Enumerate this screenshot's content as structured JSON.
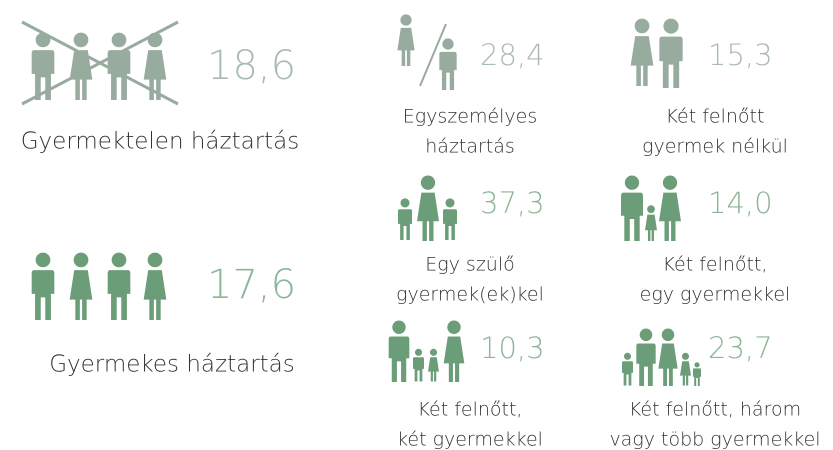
{
  "childless": {
    "value": "18,6",
    "label": "Gyermektelen háztartás"
  },
  "with_children": {
    "value": "17,6",
    "label": "Gyermekes háztartás"
  },
  "households": [
    {
      "value": "28,4",
      "label_lines": [
        "Egyszemélyes",
        "háztartás"
      ]
    },
    {
      "value": "15,3",
      "label_lines": [
        "Két felnőtt",
        "gyermek nélkül"
      ]
    },
    {
      "value": "37,3",
      "label_lines": [
        "Egy szülő",
        "gyermek(ek)kel"
      ]
    },
    {
      "value": "14,0",
      "label_lines": [
        "Két felnőtt,",
        "egy gyermekkel"
      ]
    },
    {
      "value": "10,3",
      "label_lines": [
        "Két felnőtt,",
        "két gyermekkel"
      ]
    },
    {
      "value": "23,7",
      "label_lines": [
        "Két felnőtt, három",
        "vagy több gyermekkel"
      ]
    }
  ]
}
